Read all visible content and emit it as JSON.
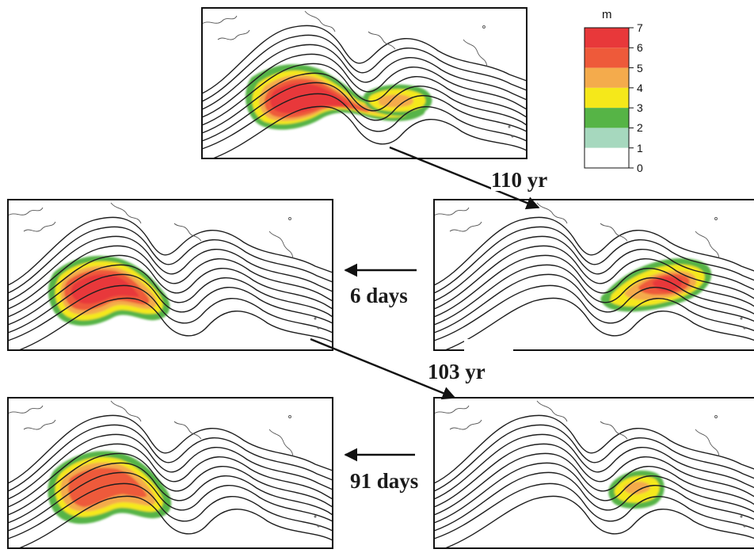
{
  "colorbar": {
    "unit": "m",
    "levels": [
      "7",
      "6",
      "5",
      "4",
      "3",
      "2",
      "1",
      "0"
    ],
    "bands": [
      {
        "from": 6,
        "to": 7,
        "color": "#e8383a"
      },
      {
        "from": 5,
        "to": 6,
        "color": "#ee5a3a"
      },
      {
        "from": 4,
        "to": 5,
        "color": "#f4ab4c"
      },
      {
        "from": 3,
        "to": 4,
        "color": "#f5e81a"
      },
      {
        "from": 2,
        "to": 3,
        "color": "#56b446"
      },
      {
        "from": 1,
        "to": 2,
        "color": "#a6d8be"
      },
      {
        "from": 0,
        "to": 1,
        "color": "#ffffff"
      }
    ]
  },
  "labels": {
    "top_transition": "110 yr",
    "row1_interval": "6 days",
    "middle_transition": "103 yr",
    "row2_interval": "91 days"
  },
  "panels": [
    {
      "id": "top",
      "anomaly_max_m": 7
    },
    {
      "id": "mid-left",
      "anomaly_max_m": 7
    },
    {
      "id": "mid-right",
      "anomaly_max_m": 7
    },
    {
      "id": "bottom-left",
      "anomaly_max_m": 6
    },
    {
      "id": "bottom-right",
      "anomaly_max_m": 4
    }
  ]
}
